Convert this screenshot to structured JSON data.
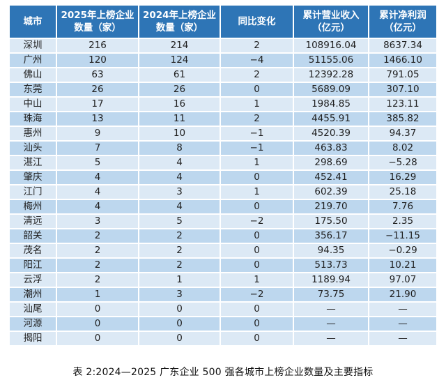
{
  "table": {
    "headers": [
      "城市",
      "2025年上榜企业数量（家）",
      "2024年上榜企业数量（家）",
      "同比变化",
      "累计营业收入（亿元）",
      "累计净利润（亿元）"
    ],
    "rows": [
      [
        "深圳",
        "216",
        "214",
        "2",
        "108916.04",
        "8637.34"
      ],
      [
        "广州",
        "120",
        "124",
        "−4",
        "51155.06",
        "1466.10"
      ],
      [
        "佛山",
        "63",
        "61",
        "2",
        "12392.28",
        "791.05"
      ],
      [
        "东莞",
        "26",
        "26",
        "0",
        "5689.09",
        "307.10"
      ],
      [
        "中山",
        "17",
        "16",
        "1",
        "1984.85",
        "123.11"
      ],
      [
        "珠海",
        "13",
        "11",
        "2",
        "4455.91",
        "385.82"
      ],
      [
        "惠州",
        "9",
        "10",
        "−1",
        "4520.39",
        "94.37"
      ],
      [
        "汕头",
        "7",
        "8",
        "−1",
        "463.83",
        "8.02"
      ],
      [
        "湛江",
        "5",
        "4",
        "1",
        "298.69",
        "−5.28"
      ],
      [
        "肇庆",
        "4",
        "4",
        "0",
        "452.41",
        "16.29"
      ],
      [
        "江门",
        "4",
        "3",
        "1",
        "602.39",
        "25.18"
      ],
      [
        "梅州",
        "4",
        "4",
        "0",
        "219.70",
        "7.76"
      ],
      [
        "清远",
        "3",
        "5",
        "−2",
        "175.50",
        "2.35"
      ],
      [
        "韶关",
        "2",
        "2",
        "0",
        "356.17",
        "−11.15"
      ],
      [
        "茂名",
        "2",
        "2",
        "0",
        "94.35",
        "−0.29"
      ],
      [
        "阳江",
        "2",
        "2",
        "0",
        "513.73",
        "10.21"
      ],
      [
        "云浮",
        "2",
        "1",
        "1",
        "1189.94",
        "97.07"
      ],
      [
        "潮州",
        "1",
        "3",
        "−2",
        "73.75",
        "21.90"
      ],
      [
        "汕尾",
        "0",
        "0",
        "0",
        "—",
        "—"
      ],
      [
        "河源",
        "0",
        "0",
        "0",
        "—",
        "—"
      ],
      [
        "揭阳",
        "0",
        "0",
        "0",
        "—",
        "—"
      ]
    ]
  },
  "caption": "表 2:2024—2025 广东企业 500 强各城市上榜企业数量及主要指标",
  "colors": {
    "header_bg": "#2E75B6",
    "row_light": "#DCE9F5",
    "row_dark": "#BDD7EE",
    "header_text": "#FFFFFF",
    "body_text": "#1F1F1F"
  }
}
